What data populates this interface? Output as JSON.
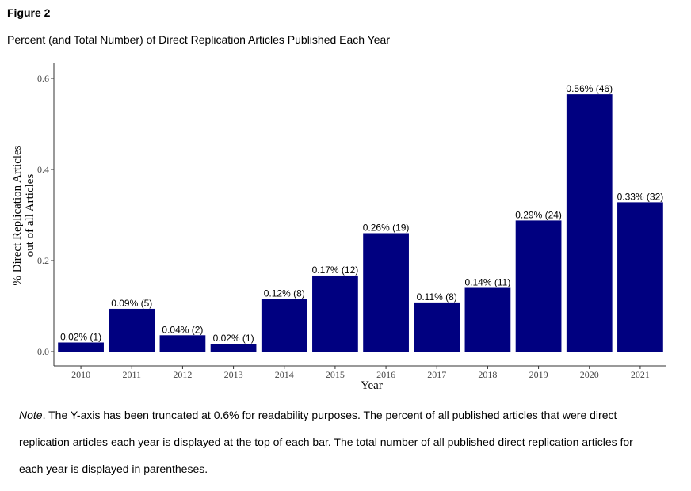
{
  "figure": {
    "label": "Figure 2",
    "title": "Percent (and Total Number) of Direct Replication Articles Published Each Year"
  },
  "chart_data": {
    "type": "bar",
    "title": "",
    "xlabel": "Year",
    "ylabel_line1": "% Direct Replication Articles",
    "ylabel_line2": "out of all Articles",
    "ylim": [
      0,
      0.6
    ],
    "yticks": [
      "0.0",
      "0.2",
      "0.4",
      "0.6"
    ],
    "categories": [
      "2010",
      "2011",
      "2012",
      "2013",
      "2014",
      "2015",
      "2016",
      "2017",
      "2018",
      "2019",
      "2020",
      "2021"
    ],
    "values": [
      0.02,
      0.094,
      0.036,
      0.017,
      0.116,
      0.167,
      0.26,
      0.108,
      0.14,
      0.288,
      0.565,
      0.328
    ],
    "data_labels": [
      "0.02% (1)",
      "0.09% (5)",
      "0.04% (2)",
      "0.02% (1)",
      "0.12% (8)",
      "0.17% (12)",
      "0.26% (19)",
      "0.11% (8)",
      "0.14% (11)",
      "0.29% (24)",
      "0.56% (46)",
      "0.33% (32)"
    ],
    "bar_color": "#000080",
    "grid": false
  },
  "note": {
    "prefix": "Note",
    "line1": ". The Y-axis has been truncated at 0.6% for readability purposes. The percent of all published articles that were direct",
    "line2": "replication articles each year is displayed at the top of each bar. The total number of all published direct replication articles for",
    "line3": "each year is displayed in parentheses."
  }
}
